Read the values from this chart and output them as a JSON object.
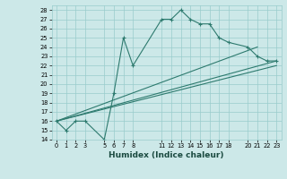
{
  "xlabel": "Humidex (Indice chaleur)",
  "ylabel": "",
  "background_color": "#cce8e8",
  "grid_color": "#99cccc",
  "line_color": "#2d7a6e",
  "xlim": [
    -0.5,
    23.5
  ],
  "ylim": [
    14,
    28.5
  ],
  "xticks": [
    0,
    1,
    2,
    3,
    5,
    6,
    7,
    8,
    11,
    12,
    13,
    14,
    15,
    16,
    17,
    18,
    20,
    21,
    22,
    23
  ],
  "yticks": [
    14,
    15,
    16,
    17,
    18,
    19,
    20,
    21,
    22,
    23,
    24,
    25,
    26,
    27,
    28
  ],
  "series": [
    {
      "x": [
        0,
        1,
        2,
        3,
        5,
        6,
        7,
        8,
        11,
        12,
        13,
        14,
        15,
        16,
        17,
        18,
        20,
        21,
        22,
        23
      ],
      "y": [
        16,
        15,
        16,
        16,
        14,
        19,
        25,
        22,
        27,
        27,
        28,
        27,
        26.5,
        26.5,
        25,
        24.5,
        24,
        23,
        22.5,
        22.5
      ],
      "marker": true
    },
    {
      "x": [
        0,
        23
      ],
      "y": [
        16,
        22.5
      ],
      "marker": false
    },
    {
      "x": [
        0,
        23
      ],
      "y": [
        16,
        22.0
      ],
      "marker": false
    },
    {
      "x": [
        0,
        21
      ],
      "y": [
        16,
        24.0
      ],
      "marker": false
    }
  ]
}
